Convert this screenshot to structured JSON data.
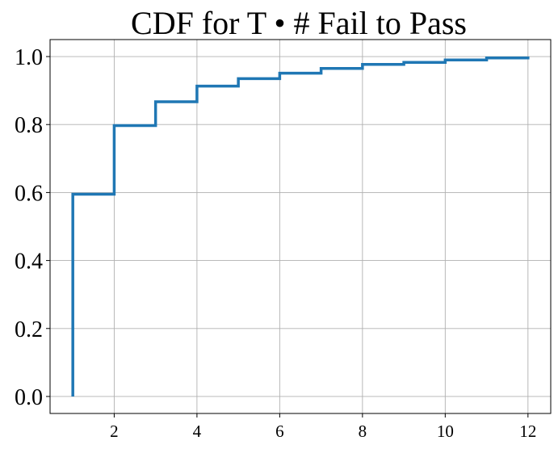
{
  "chart_data": {
    "type": "line",
    "step": "post",
    "title": "CDF for T • # Fail to Pass",
    "xlabel": "",
    "ylabel": "",
    "xlim": [
      0.45,
      12.55
    ],
    "ylim": [
      -0.05,
      1.05
    ],
    "xticks": [
      2,
      4,
      6,
      8,
      10,
      12
    ],
    "xtick_labels": [
      "2",
      "4",
      "6",
      "8",
      "10",
      "12"
    ],
    "yticks": [
      0.0,
      0.2,
      0.4,
      0.6,
      0.8,
      1.0
    ],
    "ytick_labels": [
      "0.0",
      "0.2",
      "0.4",
      "0.6",
      "0.8",
      "1.0"
    ],
    "grid": true,
    "series": [
      {
        "color": "#1f77b4",
        "x": [
          1,
          1,
          2,
          3,
          4,
          5,
          6,
          7,
          8,
          9,
          10,
          11,
          12
        ],
        "y": [
          0.0,
          0.595,
          0.797,
          0.867,
          0.913,
          0.935,
          0.951,
          0.965,
          0.977,
          0.983,
          0.99,
          0.996,
          1.0
        ]
      }
    ]
  }
}
